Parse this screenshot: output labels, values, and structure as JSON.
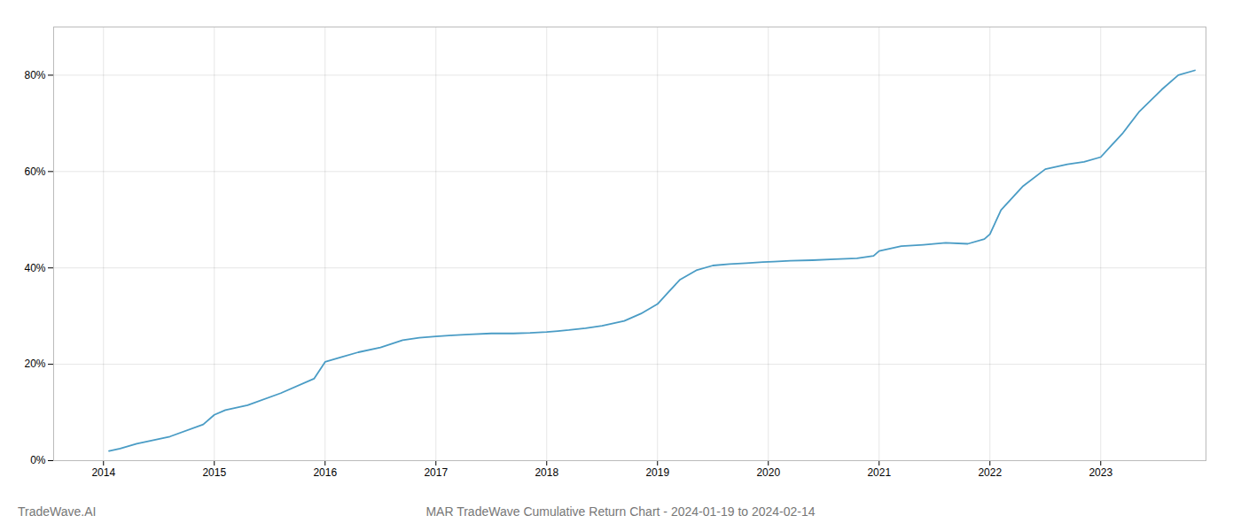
{
  "chart_data": {
    "type": "line",
    "title": "MAR TradeWave Cumulative Return Chart - 2024-01-19 to 2024-02-14",
    "annotations": [
      "TradeWave.AI"
    ],
    "x": [
      2014.05,
      2014.15,
      2014.3,
      2014.6,
      2014.9,
      2015.0,
      2015.1,
      2015.3,
      2015.6,
      2015.9,
      2016.0,
      2016.15,
      2016.3,
      2016.5,
      2016.7,
      2016.85,
      2017.0,
      2017.15,
      2017.3,
      2017.5,
      2017.7,
      2017.85,
      2018.0,
      2018.1,
      2018.2,
      2018.35,
      2018.5,
      2018.7,
      2018.85,
      2019.0,
      2019.1,
      2019.2,
      2019.35,
      2019.5,
      2019.65,
      2019.8,
      2019.95,
      2020.05,
      2020.2,
      2020.4,
      2020.6,
      2020.8,
      2020.95,
      2021.0,
      2021.1,
      2021.2,
      2021.4,
      2021.6,
      2021.8,
      2021.95,
      2022.0,
      2022.1,
      2022.3,
      2022.5,
      2022.7,
      2022.85,
      2023.0,
      2023.1,
      2023.2,
      2023.35,
      2023.55,
      2023.7,
      2023.85
    ],
    "values": [
      2.0,
      2.5,
      3.5,
      5.0,
      7.5,
      9.5,
      10.5,
      11.5,
      14.0,
      17.0,
      20.5,
      21.5,
      22.5,
      23.5,
      25.0,
      25.5,
      25.8,
      26.0,
      26.2,
      26.4,
      26.4,
      26.5,
      26.7,
      26.9,
      27.1,
      27.5,
      28.0,
      29.0,
      30.5,
      32.5,
      35.0,
      37.5,
      39.5,
      40.5,
      40.8,
      41.0,
      41.2,
      41.3,
      41.5,
      41.6,
      41.8,
      42.0,
      42.5,
      43.5,
      44.0,
      44.5,
      44.8,
      45.2,
      45.0,
      46.0,
      47.0,
      52.0,
      57.0,
      60.5,
      61.5,
      62.0,
      63.0,
      65.5,
      68.0,
      72.5,
      77.0,
      80.0,
      81.0
    ],
    "color": "#4a9cc5",
    "xlim": [
      2013.55,
      2023.95
    ],
    "ylim": [
      0,
      90
    ],
    "xticks": [
      2014,
      2015,
      2016,
      2017,
      2018,
      2019,
      2020,
      2021,
      2022,
      2023
    ],
    "yticks": [
      {
        "value": 0,
        "label": "0%"
      },
      {
        "value": 20,
        "label": "20%"
      },
      {
        "value": 40,
        "label": "40%"
      },
      {
        "value": 60,
        "label": "60%"
      },
      {
        "value": 80,
        "label": "80%"
      }
    ],
    "grid": true
  }
}
